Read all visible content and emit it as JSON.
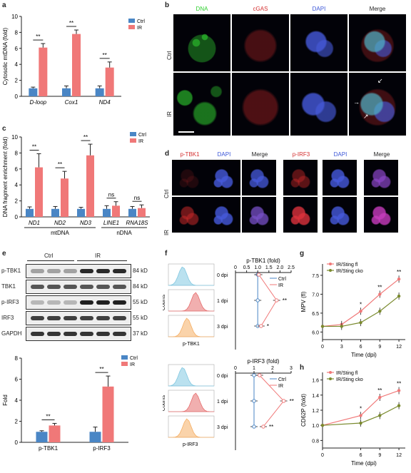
{
  "colors": {
    "ctrl": "#4a86c5",
    "ir": "#f07878",
    "dna": "#2fd02f",
    "cgas": "#d43030",
    "dapi": "#3a55d8",
    "ptbk1": "#d43030",
    "pirf3": "#d43030",
    "sting_fl": "#f07878",
    "sting_ko": "#7a8a2e"
  },
  "panels": {
    "a": "a",
    "b": "b",
    "c": "c",
    "d": "d",
    "e": "e",
    "f": "f",
    "g": "g",
    "h": "h"
  },
  "panel_b": {
    "columns": [
      "DNA",
      "cGAS",
      "DAPI",
      "Merge"
    ],
    "rows": [
      "Ctrl",
      "IR"
    ]
  },
  "panel_d": {
    "columns": [
      "p-TBK1",
      "DAPI",
      "Merge",
      "p-IRF3",
      "DAPI",
      "Merge"
    ],
    "rows": [
      "Ctrl",
      "IR"
    ]
  },
  "panel_e_blot": {
    "groups": [
      "Ctrl",
      "IR"
    ],
    "rows": [
      {
        "name": "p-TBK1",
        "kd": "84 kD"
      },
      {
        "name": "TBK1",
        "kd": "84 kD"
      },
      {
        "name": "p-IRF3",
        "kd": "55 kD"
      },
      {
        "name": "IRF3",
        "kd": "55 kD"
      },
      {
        "name": "GAPDH",
        "kd": "37 kD"
      }
    ]
  },
  "panel_f": {
    "days": [
      "0 dpi",
      "1 dpi",
      "3 dpi"
    ],
    "counts_label": "Counts",
    "xlabel_top": "p-TBK1",
    "xlabel_bottom": "p-IRF3"
  },
  "chart_data": [
    {
      "id": "a",
      "type": "bar",
      "ylabel": "Cytosolic mtDNA (fold)",
      "ylim": [
        0,
        10
      ],
      "yticks": [
        "0",
        "2",
        "4",
        "6",
        "8",
        "10"
      ],
      "categories": [
        "D-loop",
        "Cox1",
        "ND4"
      ],
      "series": [
        {
          "name": "Ctrl",
          "values": [
            1,
            1,
            1
          ]
        },
        {
          "name": "IR",
          "values": [
            6.1,
            7.8,
            3.6
          ]
        }
      ],
      "errors": {
        "Ctrl": [
          0.15,
          0.3,
          0.3
        ],
        "IR": [
          0.5,
          0.5,
          0.7
        ]
      },
      "significance": [
        "**",
        "**",
        "**"
      ]
    },
    {
      "id": "c",
      "type": "bar",
      "ylabel": "DNA fragment enrichment (fold)",
      "ylim": [
        0,
        10
      ],
      "yticks": [
        "0",
        "2",
        "4",
        "6",
        "8",
        "10"
      ],
      "categories": [
        "ND1",
        "ND2",
        "ND3",
        "LINE1",
        "RNA18S"
      ],
      "series": [
        {
          "name": "Ctrl",
          "values": [
            1,
            1,
            1,
            1,
            1
          ]
        },
        {
          "name": "IR",
          "values": [
            6.2,
            4.8,
            7.7,
            1.4,
            1.1
          ]
        }
      ],
      "errors": {
        "Ctrl": [
          0.25,
          0.3,
          0.2,
          0.4,
          0.3
        ],
        "IR": [
          1.7,
          0.9,
          1.4,
          0.5,
          0.4
        ]
      },
      "significance": [
        "**",
        "**",
        "**",
        "ns",
        "ns"
      ],
      "groups": [
        {
          "label": "mtDNA",
          "span": [
            0,
            2
          ]
        },
        {
          "label": "nDNA",
          "span": [
            3,
            4
          ]
        }
      ]
    },
    {
      "id": "e",
      "type": "bar",
      "ylabel": "Fold",
      "ylim": [
        0,
        8
      ],
      "yticks": [
        "0",
        "2",
        "4",
        "6",
        "8"
      ],
      "categories": [
        "p-TBK1",
        "p-IRF3"
      ],
      "series": [
        {
          "name": "Ctrl",
          "values": [
            1,
            1
          ]
        },
        {
          "name": "IR",
          "values": [
            1.6,
            5.3
          ]
        }
      ],
      "errors": {
        "Ctrl": [
          0.1,
          0.45
        ],
        "IR": [
          0.2,
          1.0
        ]
      },
      "significance": [
        "**",
        "**"
      ]
    },
    {
      "id": "f1",
      "type": "line",
      "title": "p-TBK1 (fold)",
      "xlim": [
        0,
        2.5
      ],
      "xticks": [
        "0",
        "0.5",
        "1.0",
        "1.5",
        "2.0",
        "2.5"
      ],
      "categories": [
        "0 dpi",
        "1 dpi",
        "3 dpi"
      ],
      "series": [
        {
          "name": "Ctrl",
          "values": [
            1,
            1,
            1
          ]
        },
        {
          "name": "IR",
          "values": [
            1.05,
            1.85,
            1.15
          ]
        }
      ],
      "significance": [
        "",
        "**",
        "*"
      ]
    },
    {
      "id": "f2",
      "type": "line",
      "title": "p-IRF3 (fold)",
      "xlim": [
        0,
        3
      ],
      "xticks": [
        "0",
        "1",
        "2",
        "3"
      ],
      "categories": [
        "0 dpi",
        "1 dpi",
        "3 dpi"
      ],
      "series": [
        {
          "name": "Ctrl",
          "values": [
            1,
            1,
            1
          ]
        },
        {
          "name": "IR",
          "values": [
            1.3,
            2.6,
            1.5
          ]
        }
      ],
      "significance": [
        "",
        "**",
        "**"
      ]
    },
    {
      "id": "g",
      "type": "line",
      "ylabel": "MPV (fl)",
      "xlabel": "Time (dpi)",
      "ylim": [
        5.8,
        7.8
      ],
      "yticks": [
        "6.0",
        "6.5",
        "7.0",
        "7.5"
      ],
      "x": [
        0,
        3,
        6,
        9,
        12
      ],
      "xticks": [
        "0",
        "3",
        "6",
        "9",
        "12"
      ],
      "series": [
        {
          "name": "IR/Sting fl",
          "values": [
            6.15,
            6.2,
            6.55,
            7.0,
            7.4
          ]
        },
        {
          "name": "IR/Sting cko",
          "values": [
            6.15,
            6.15,
            6.25,
            6.55,
            6.95
          ]
        }
      ],
      "significance": [
        "",
        "",
        "*",
        "**",
        "**"
      ]
    },
    {
      "id": "h",
      "type": "line",
      "ylabel": "CD62P (fold)",
      "xlabel": "Time (dpi)",
      "ylim": [
        0.7,
        1.7
      ],
      "yticks": [
        "0.8",
        "1.0",
        "1.2",
        "1.4",
        "1.6"
      ],
      "x": [
        0,
        6,
        9,
        12
      ],
      "xticks": [
        "0",
        "6",
        "9",
        "12"
      ],
      "series": [
        {
          "name": "IR/Sting fl",
          "values": [
            1.0,
            1.13,
            1.37,
            1.46
          ]
        },
        {
          "name": "IR/Sting cko",
          "values": [
            1.0,
            1.03,
            1.13,
            1.26
          ]
        }
      ],
      "significance": [
        "",
        "*",
        "**",
        "**"
      ]
    }
  ]
}
